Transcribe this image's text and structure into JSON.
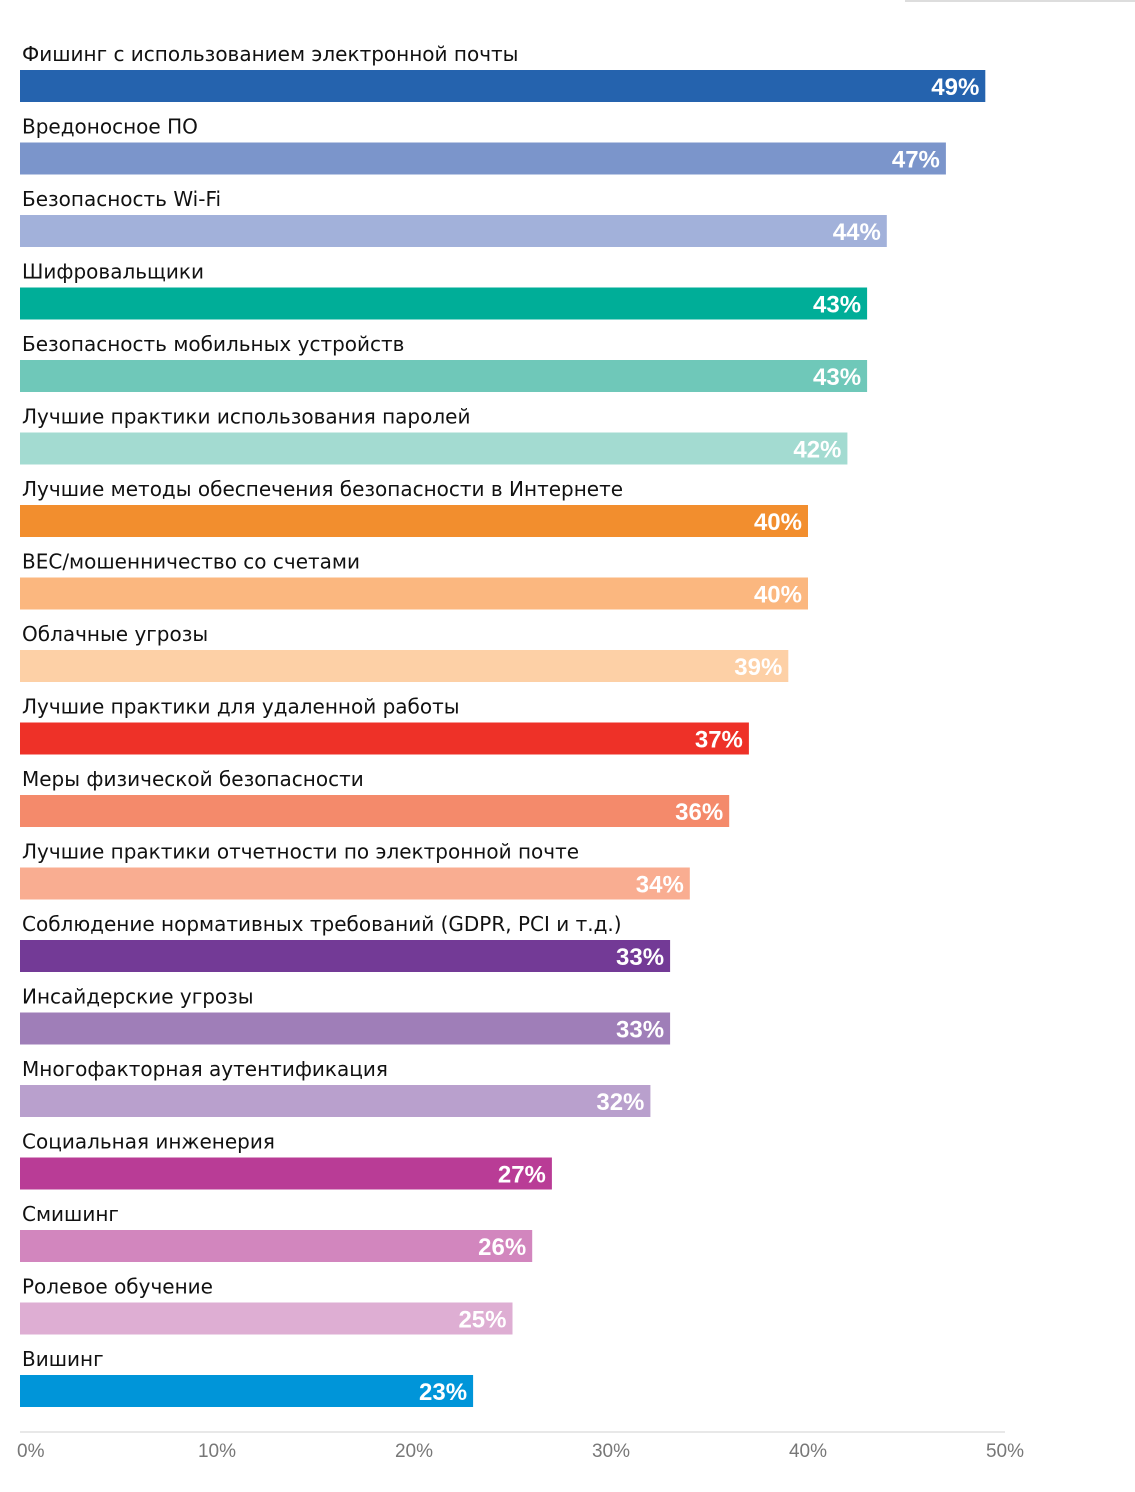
{
  "chart_data": {
    "type": "bar",
    "orientation": "horizontal",
    "categories": [
      "Фишинг с использованием электронной почты",
      "Вредоносное ПО",
      "Безопасность Wi-Fi",
      "Шифровальщики",
      "Безопасность мобильных устройств",
      "Лучшие практики использования паролей",
      "Лучшие методы обеспечения безопасности в Интернете",
      "BEC/мошенничество со счетами",
      "Облачные угрозы",
      "Лучшие практики для удаленной работы",
      "Меры физической безопасности",
      "Лучшие практики отчетности по электронной почте",
      "Соблюдение нормативных требований (GDPR, PCI и т.д.)",
      "Инсайдерские угрозы",
      "Многофакторная аутентификация",
      "Социальная инженерия",
      "Смишинг",
      "Ролевое обучение",
      "Вишинг"
    ],
    "values": [
      49,
      47,
      44,
      43,
      43,
      42,
      40,
      40,
      39,
      37,
      36,
      34,
      33,
      33,
      32,
      27,
      26,
      25,
      23
    ],
    "value_labels": [
      "49%",
      "47%",
      "44%",
      "43%",
      "43%",
      "42%",
      "40%",
      "40%",
      "39%",
      "37%",
      "36%",
      "34%",
      "33%",
      "33%",
      "32%",
      "27%",
      "26%",
      "25%",
      "23%"
    ],
    "colors": [
      "#2563AE",
      "#7B95CB",
      "#A2B1DA",
      "#00AE98",
      "#6FC8B9",
      "#A3DBD1",
      "#F28E2E",
      "#FBB77F",
      "#FDD0A6",
      "#EE3128",
      "#F48A6B",
      "#F9AD91",
      "#733A96",
      "#9F7EB8",
      "#B9A0CD",
      "#B93C96",
      "#D286BE",
      "#DEAED3",
      "#0095D9"
    ],
    "x_ticks": [
      "0%",
      "10%",
      "20%",
      "30%",
      "40%",
      "50%"
    ],
    "xlim": [
      0,
      50
    ],
    "grid": false,
    "legend": "none"
  }
}
